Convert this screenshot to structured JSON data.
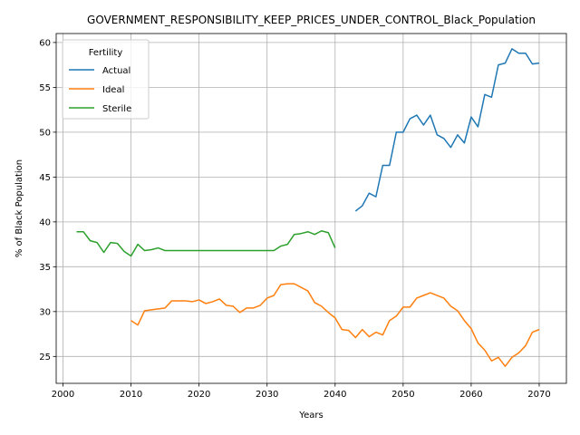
{
  "chart_data": {
    "type": "line",
    "title": "GOVERNMENT_RESPONSIBILITY_KEEP_PRICES_UNDER_CONTROL_Black_Population",
    "xlabel": "Years",
    "ylabel": "% of Black Population",
    "xlim": [
      1999,
      2074
    ],
    "ylim": [
      22,
      61
    ],
    "xticks": [
      2000,
      2010,
      2020,
      2030,
      2040,
      2050,
      2060,
      2070
    ],
    "yticks": [
      25,
      30,
      35,
      40,
      45,
      50,
      55,
      60
    ],
    "grid": true,
    "legend": {
      "title": "Fertility",
      "placement": "top-left"
    },
    "series": [
      {
        "name": "Actual",
        "color": "#1f77b4",
        "x": [
          2043,
          2044,
          2045,
          2046,
          2047,
          2048,
          2049,
          2050,
          2051,
          2052,
          2053,
          2054,
          2055,
          2056,
          2057,
          2058,
          2059,
          2060,
          2061,
          2062,
          2063,
          2064,
          2065,
          2066,
          2067,
          2068,
          2069,
          2070
        ],
        "y": [
          41.2,
          41.8,
          43.2,
          42.8,
          46.3,
          46.3,
          50.0,
          50.0,
          51.5,
          51.9,
          50.8,
          51.9,
          49.7,
          49.3,
          48.3,
          49.7,
          48.8,
          51.7,
          50.6,
          54.2,
          53.9,
          57.5,
          57.7,
          59.3,
          58.8,
          58.8,
          57.6,
          57.7
        ]
      },
      {
        "name": "Ideal",
        "color": "#ff7f0e",
        "x": [
          2010,
          2011,
          2012,
          2013,
          2014,
          2015,
          2016,
          2017,
          2018,
          2019,
          2020,
          2021,
          2022,
          2023,
          2024,
          2025,
          2026,
          2027,
          2028,
          2029,
          2030,
          2031,
          2032,
          2033,
          2034,
          2035,
          2036,
          2037,
          2038,
          2039,
          2040,
          2041,
          2042,
          2043,
          2044,
          2045,
          2046,
          2047,
          2048,
          2049,
          2050,
          2051,
          2052,
          2053,
          2054,
          2055,
          2056,
          2057,
          2058,
          2059,
          2060,
          2061,
          2062,
          2063,
          2064,
          2065,
          2066,
          2067,
          2068,
          2069,
          2070
        ],
        "y": [
          29.0,
          28.5,
          30.1,
          30.2,
          30.3,
          30.4,
          31.2,
          31.2,
          31.2,
          31.1,
          31.3,
          30.9,
          31.1,
          31.4,
          30.7,
          30.6,
          29.9,
          30.4,
          30.4,
          30.7,
          31.5,
          31.8,
          33.0,
          33.1,
          33.1,
          32.7,
          32.3,
          31.0,
          30.6,
          29.9,
          29.3,
          28.0,
          27.9,
          27.1,
          28.0,
          27.2,
          27.7,
          27.4,
          29.0,
          29.5,
          30.5,
          30.5,
          31.5,
          31.8,
          32.1,
          31.8,
          31.5,
          30.6,
          30.1,
          29.0,
          28.1,
          26.5,
          25.7,
          24.5,
          24.9,
          23.9,
          24.9,
          25.4,
          26.2,
          27.7,
          28.0
        ]
      },
      {
        "name": "Sterile",
        "color": "#2ca02c",
        "x": [
          2002,
          2003,
          2004,
          2005,
          2006,
          2007,
          2008,
          2009,
          2010,
          2011,
          2012,
          2013,
          2014,
          2015,
          2016,
          2017,
          2018,
          2019,
          2020,
          2021,
          2022,
          2023,
          2024,
          2025,
          2026,
          2027,
          2028,
          2029,
          2030,
          2031,
          2032,
          2033,
          2034,
          2035,
          2036,
          2037,
          2038,
          2039,
          2040
        ],
        "y": [
          38.9,
          38.9,
          37.9,
          37.7,
          36.6,
          37.7,
          37.6,
          36.7,
          36.2,
          37.5,
          36.8,
          36.9,
          37.1,
          36.8,
          36.8,
          36.8,
          36.8,
          36.8,
          36.8,
          36.8,
          36.8,
          36.8,
          36.8,
          36.8,
          36.8,
          36.8,
          36.8,
          36.8,
          36.8,
          36.8,
          37.3,
          37.5,
          38.6,
          38.7,
          38.9,
          38.6,
          39.0,
          38.8,
          37.1
        ]
      }
    ]
  }
}
